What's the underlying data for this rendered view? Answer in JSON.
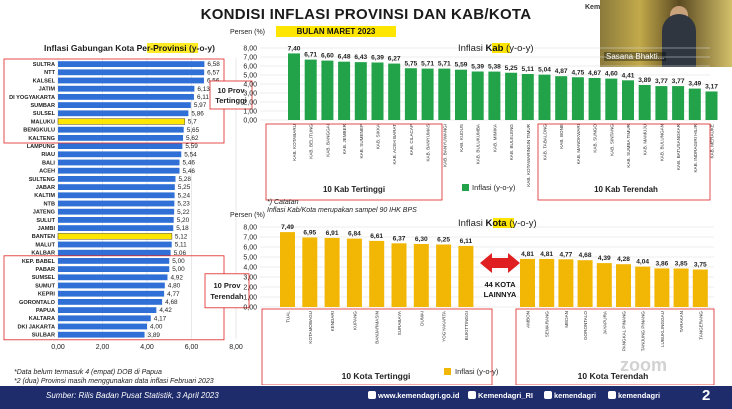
{
  "page": {
    "title": "KONDISI INFLASI PROVINSI DAN KAB/KOTA",
    "subtitle": "BULAN MARET 2023",
    "brand_top": "Kemend",
    "video_name": "Sasana Bhakti...",
    "page_number": "2",
    "zoom_watermark": "zoom",
    "notes": [
      "*Data belum termasuk 4 (empat) DOB di Papua",
      "*2 (dua) Provinsi masih menggunakan data inflasi Februari 2023"
    ],
    "catatan_title": "*) Catatan",
    "catatan_text": "Inflasi Kab/Kota merupakan sampel 90 IHK BPS",
    "footer_source": "Sumber: Rilis Badan Pusat Statistik, 3 April 2023",
    "footer_links": [
      "www.kemendagri.go.id",
      "Kemendagri_RI",
      "kemendagri",
      "kemendagri"
    ],
    "colors": {
      "blue": "#2f6fd6",
      "yellow": "#ffe600",
      "green": "#22a34a",
      "orange": "#f2b705",
      "red": "#e02020",
      "navy": "#1f2c6b"
    }
  },
  "chart_data": [
    {
      "type": "bar",
      "orientation": "horizontal",
      "title": "Inflasi Gabungan Kota Per-Provinsi (y-o-y)",
      "title_highlight": "Per-Provinsi",
      "categories": [
        "SULTRA",
        "NTT",
        "KALSEL",
        "JATIM",
        "DI YOGYAKARTA",
        "SUMBAR",
        "SULSEL",
        "MALUKU",
        "BENGKULU",
        "KALTENG",
        "LAMPUNG",
        "RIAU",
        "BALI",
        "ACEH",
        "SULTENG",
        "JABAR",
        "KALTIM",
        "NTB",
        "JATENG",
        "SULUT",
        "JAMBI",
        "BANTEN",
        "MALUT",
        "KALBAR",
        "KEP. BABEL",
        "PABAR",
        "SUMSEL",
        "SUMUT",
        "KEPRI",
        "GORONTALO",
        "PAPUA",
        "KALTARA",
        "DKI JAKARTA",
        "SULBAR"
      ],
      "values": [
        6.58,
        6.57,
        6.56,
        6.13,
        6.11,
        5.97,
        5.86,
        5.7,
        5.65,
        5.62,
        5.59,
        5.54,
        5.46,
        5.46,
        5.28,
        5.25,
        5.24,
        5.23,
        5.22,
        5.2,
        5.18,
        5.12,
        5.11,
        5.06,
        5.0,
        5.0,
        4.92,
        4.8,
        4.77,
        4.68,
        4.42,
        4.17,
        4.0,
        3.89
      ],
      "value_labels": [
        "6,58",
        "6,57",
        "6,56",
        "6,13",
        "6,11",
        "5,97",
        "5,86",
        "5,7",
        "5,65",
        "5,62",
        "5,59",
        "5,54",
        "5,46",
        "5,46",
        "5,28",
        "5,25",
        "5,24",
        "5,23",
        "5,22",
        "5,20",
        "5,18",
        "5,12",
        "5,11",
        "5,06",
        "5,00",
        "5,00",
        "4,92",
        "4,80",
        "4,77",
        "4,68",
        "4,42",
        "4,17",
        "4,00",
        "3,89"
      ],
      "highlighted": [
        "MALUKU",
        "BANTEN"
      ],
      "xlim": [
        0,
        8
      ],
      "xticks": [
        "0,00",
        "2,00",
        "4,00",
        "6,00",
        "8,00"
      ],
      "annotations": [
        "10 Prov Tertinggi",
        "10 Prov Terendah"
      ]
    },
    {
      "type": "bar",
      "title": "Inflasi Kab (y-o-y)",
      "title_highlight": "Kab",
      "ylabel": "Persen (%)",
      "categories": [
        "KAB. KOTABARU",
        "KAB. BELITUNG",
        "KAB. BANGGAI",
        "KAB. JEMBER",
        "KAB. SUMENEP",
        "KAB. SIKKA",
        "KAB. ACEH BARAT",
        "KAB. CILACAP",
        "KAB. BANYUMAS",
        "KAB. BANYUWANGI",
        "KAB. KUDUS",
        "KAB. BULUKUMBA",
        "KAB. MIMIKA",
        "KAB. BULELENG",
        "KAB. KOTAWARINGIN TIMUR",
        "KAB. TABALONG",
        "KAB. BONE",
        "KAB. MANOKWARI",
        "KAB. SUNGO",
        "KAB. SINTANG",
        "KAB. SUMBA TIMUR",
        "KAB. MAMUJU",
        "KAB. BULUNGAN",
        "KAB. BATUSANGKAR",
        "KAB. INDRAGIRI HILIR",
        "KAB. MERAUKE"
      ],
      "values": [
        7.4,
        6.71,
        6.6,
        6.48,
        6.43,
        6.39,
        6.27,
        5.75,
        5.71,
        5.71,
        5.59,
        5.39,
        5.38,
        5.25,
        5.11,
        5.04,
        4.87,
        4.75,
        4.67,
        4.6,
        4.41,
        3.89,
        3.77,
        3.77,
        3.49,
        3.17
      ],
      "value_labels": [
        "7,40",
        "6,71",
        "6,60",
        "6,48",
        "6,43",
        "6,39",
        "6,27",
        "5,75",
        "5,71",
        "5,71",
        "5,59",
        "5,39",
        "5,38",
        "5,25",
        "5,11",
        "5,04",
        "4,87",
        "4,75",
        "4,67",
        "4,60",
        "4,41",
        "3,89",
        "3,77",
        "3,77",
        "3,49",
        "3,17"
      ],
      "ylim": [
        0,
        8
      ],
      "yticks": [
        "0,00",
        "1,00",
        "2,00",
        "3,00",
        "4,00",
        "5,00",
        "6,00",
        "7,00",
        "8,00"
      ],
      "legend": "Inflasi (y-o-y)",
      "annotations": [
        "10 Kab Tertinggi",
        "10 Kab Terendah"
      ]
    },
    {
      "type": "bar",
      "title": "Inflasi Kota (y-o-y)",
      "title_highlight": "Kota",
      "ylabel": "Persen (%)",
      "categories": [
        "TUAL",
        "KOTAMOBAGU",
        "KENDARI",
        "KUPANG",
        "BANJARMASIN",
        "SURABAYA",
        "DUMAI",
        "YOGYAKARTA",
        "BUKITTINGGI",
        "AMBON",
        "SEMARANG",
        "MEDAN",
        "GORONTALO",
        "JAYAPURA",
        "PANGKAL PINANG",
        "TANJUNG PINANG",
        "LUBUKLINGGAU",
        "TARAKAN",
        "TANGERANG"
      ],
      "values": [
        7.49,
        6.95,
        6.91,
        6.84,
        6.61,
        6.37,
        6.3,
        6.25,
        6.11,
        4.81,
        4.81,
        4.77,
        4.68,
        4.39,
        4.28,
        4.04,
        3.86,
        3.85,
        3.75
      ],
      "value_labels": [
        "7,49",
        "6,95",
        "6,91",
        "6,84",
        "6,61",
        "6,37",
        "6,30",
        "6,25",
        "6,11",
        "4,81",
        "4,81",
        "4,77",
        "4,68",
        "4,39",
        "4,28",
        "4,04",
        "3,86",
        "3,85",
        "3,75"
      ],
      "ylim": [
        0,
        8
      ],
      "yticks": [
        "0,00",
        "1,00",
        "2,00",
        "3,00",
        "4,00",
        "5,00",
        "6,00",
        "7,00",
        "8,00"
      ],
      "legend": "Inflasi (y-o-y)",
      "gap_label": "44 KOTA LAINNYA",
      "annotations": [
        "10 Kota Tertinggi",
        "10 Kota Terendah"
      ]
    }
  ]
}
